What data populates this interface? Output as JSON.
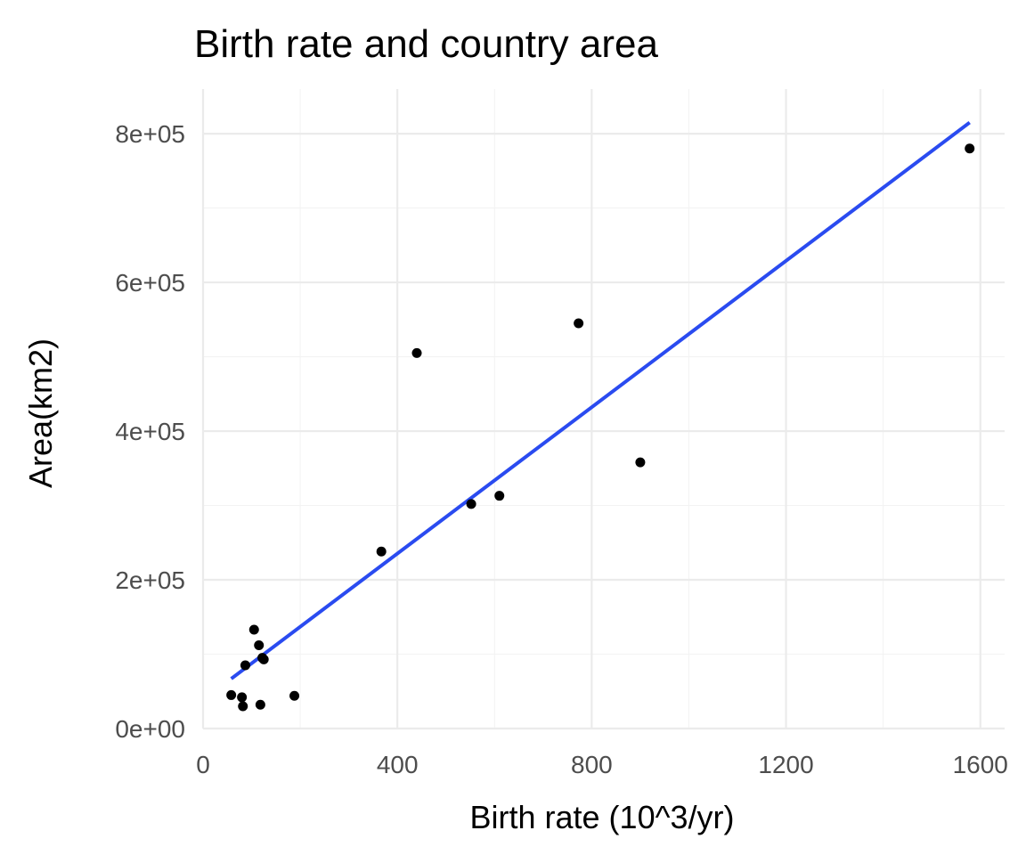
{
  "chart_data": {
    "type": "scatter",
    "title": "Birth rate and country area",
    "xlabel": "Birth rate (10^3/yr)",
    "ylabel": "Area(km2)",
    "xlim": [
      0,
      1650
    ],
    "ylim": [
      0,
      860000
    ],
    "x_ticks": [
      0,
      400,
      800,
      1200,
      1600
    ],
    "x_tick_labels": [
      "0",
      "400",
      "800",
      "1200",
      "1600"
    ],
    "y_ticks": [
      0,
      200000,
      400000,
      600000,
      800000
    ],
    "y_tick_labels": [
      "0e+00",
      "2e+05",
      "4e+05",
      "6e+05",
      "8e+05"
    ],
    "grid": true,
    "legend": "none",
    "point_color": "#000000",
    "line_color": "#2a4bf0",
    "points": [
      {
        "x": 58,
        "y": 45000
      },
      {
        "x": 80,
        "y": 42000
      },
      {
        "x": 82,
        "y": 30000
      },
      {
        "x": 87,
        "y": 85000
      },
      {
        "x": 105,
        "y": 133000
      },
      {
        "x": 115,
        "y": 112000
      },
      {
        "x": 118,
        "y": 32000
      },
      {
        "x": 122,
        "y": 95000
      },
      {
        "x": 125,
        "y": 93000
      },
      {
        "x": 188,
        "y": 44000
      },
      {
        "x": 367,
        "y": 238000
      },
      {
        "x": 440,
        "y": 505000
      },
      {
        "x": 552,
        "y": 302000
      },
      {
        "x": 610,
        "y": 313000
      },
      {
        "x": 773,
        "y": 545000
      },
      {
        "x": 900,
        "y": 358000
      },
      {
        "x": 1578,
        "y": 780000
      }
    ],
    "fit_line": {
      "x": [
        58,
        1578
      ],
      "y": [
        67000,
        815000
      ]
    }
  }
}
